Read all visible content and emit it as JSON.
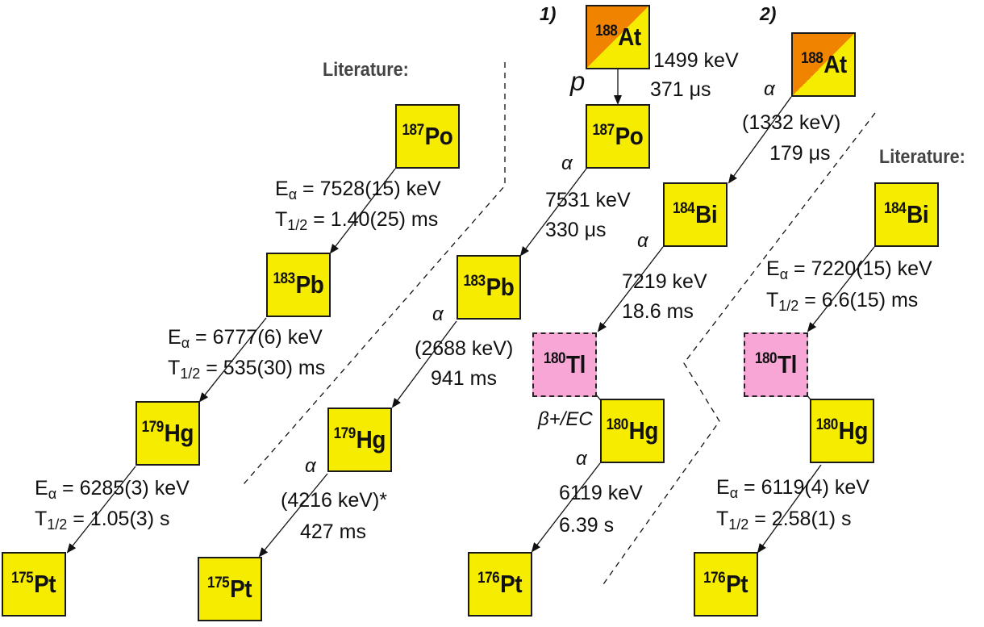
{
  "headers": {
    "literature_left": "Literature:",
    "literature_right": "Literature:",
    "step1": "1)",
    "step2": "2)"
  },
  "decay_symbols": {
    "proton": "p",
    "alpha": "α",
    "beta_ec": "β+/EC"
  },
  "nuclides": {
    "lit_left": [
      {
        "mass": "187",
        "symbol": "Po"
      },
      {
        "mass": "183",
        "symbol": "Pb"
      },
      {
        "mass": "179",
        "symbol": "Hg"
      },
      {
        "mass": "175",
        "symbol": "Pt"
      }
    ],
    "chain1": [
      {
        "mass": "188",
        "symbol": "At"
      },
      {
        "mass": "187",
        "symbol": "Po"
      },
      {
        "mass": "183",
        "symbol": "Pb"
      },
      {
        "mass": "179",
        "symbol": "Hg"
      },
      {
        "mass": "175",
        "symbol": "Pt"
      }
    ],
    "chain2": [
      {
        "mass": "188",
        "symbol": "At"
      },
      {
        "mass": "184",
        "symbol": "Bi"
      },
      {
        "mass": "180",
        "symbol": "Tl"
      },
      {
        "mass": "180",
        "symbol": "Hg"
      },
      {
        "mass": "176",
        "symbol": "Pt"
      }
    ],
    "lit_right": [
      {
        "mass": "184",
        "symbol": "Bi"
      },
      {
        "mass": "180",
        "symbol": "Tl"
      },
      {
        "mass": "180",
        "symbol": "Hg"
      },
      {
        "mass": "176",
        "symbol": "Pt"
      }
    ]
  },
  "lit_left_decays": [
    {
      "e_prefix": "E",
      "e_sub": "α",
      "energy": " = 7528(15) keV",
      "t_prefix": "T",
      "t_sub": "1/2",
      "halflife": " = 1.40(25) ms"
    },
    {
      "e_prefix": "E",
      "e_sub": "α",
      "energy": " = 6777(6) keV",
      "t_prefix": "T",
      "t_sub": "1/2",
      "halflife": " = 535(30) ms"
    },
    {
      "e_prefix": "E",
      "e_sub": "α",
      "energy": " = 6285(3) keV",
      "t_prefix": "T",
      "t_sub": "1/2",
      "halflife": " = 1.05(3) s"
    }
  ],
  "lit_right_decays": [
    {
      "e_prefix": "E",
      "e_sub": "α",
      "energy": " = 7220(15) keV",
      "t_prefix": "T",
      "t_sub": "1/2",
      "halflife": " = 6.6(15) ms"
    },
    {
      "e_prefix": "E",
      "e_sub": "α",
      "energy": " = 6119(4) keV",
      "t_prefix": "T",
      "t_sub": "1/2",
      "halflife": " = 2.58(1) s"
    }
  ],
  "chain1_decays": [
    {
      "energy": "1499 keV",
      "halflife": "371 μs"
    },
    {
      "energy": "7531 keV",
      "halflife": "330 μs"
    },
    {
      "energy": "(2688 keV)",
      "halflife": "941 ms"
    },
    {
      "energy": "(4216 keV)*",
      "halflife": "427 ms"
    }
  ],
  "chain2_decays": [
    {
      "energy": "(1332 keV)",
      "halflife": "179 μs"
    },
    {
      "energy": "7219 keV",
      "halflife": "18.6 ms"
    },
    {
      "energy": "6119 keV",
      "halflife": "6.39 s"
    }
  ],
  "colors": {
    "nuclide_fill": "#f6ec00",
    "astatine_corner": "#f08400",
    "thallium_fill": "#f7a6d6",
    "border": "#1a1a1a"
  }
}
